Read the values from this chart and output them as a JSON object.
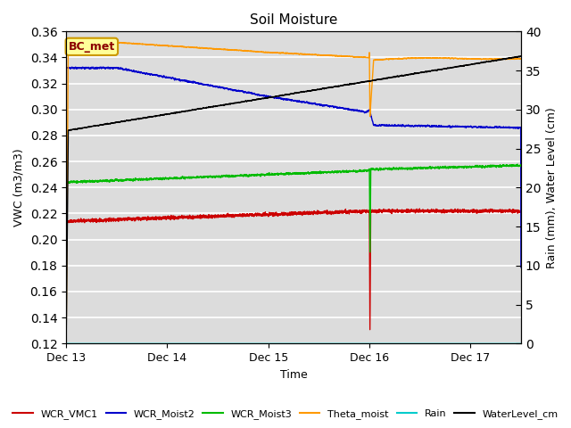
{
  "title": "Soil Moisture",
  "ylabel_left": "VWC (m3/m3)",
  "ylabel_right": "Rain (mm), Water Level (cm)",
  "xlabel": "Time",
  "ylim_left": [
    0.12,
    0.36
  ],
  "ylim_right": [
    0,
    40
  ],
  "plot_bg_color": "#dcdcdc",
  "fig_bg_color": "#ffffff",
  "annotation_text": "BC_met",
  "annotation_fg": "#8b0000",
  "annotation_bg": "#ffff99",
  "annotation_edge": "#cc9900",
  "colors": {
    "WCR_VMC1": "#cc0000",
    "WCR_Moist2": "#0000cc",
    "WCR_Moist3": "#00bb00",
    "Theta_moist": "#ff9900",
    "Rain": "#00cccc",
    "WaterLevel_cm": "#000000"
  },
  "x_tick_labels": [
    "Dec 13",
    "Dec 14",
    "Dec 15",
    "Dec 16",
    "Dec 17"
  ],
  "x_tick_positions": [
    0,
    1440,
    2880,
    4320,
    5760
  ],
  "total_minutes": 6480,
  "seed": 42
}
